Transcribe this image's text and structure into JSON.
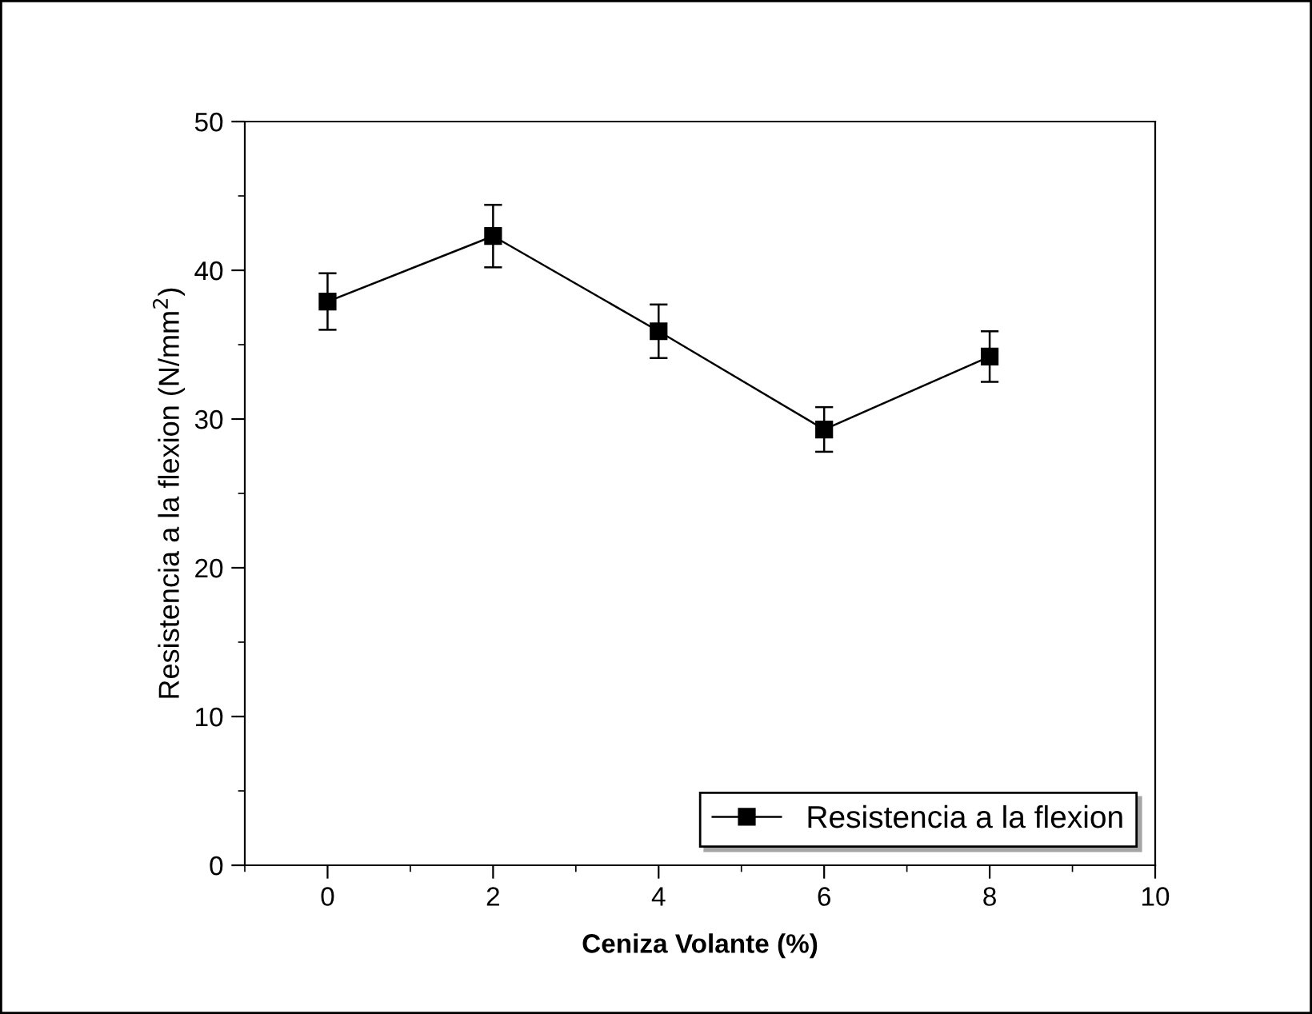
{
  "chart_data": {
    "type": "line",
    "xlabel": "Ceniza Volante (%)",
    "ylabel": "Resistencia a la flexion (N/mm$^{2}$)",
    "x": [
      0,
      2,
      4,
      6,
      8
    ],
    "series": [
      {
        "name": "Resistencia a la flexion",
        "color": "#000000",
        "values": [
          37.9,
          42.3,
          35.9,
          29.3,
          34.2
        ],
        "errors": [
          1.9,
          2.1,
          1.8,
          1.5,
          1.7
        ]
      }
    ],
    "xlim": [
      -1,
      10
    ],
    "xticks": [
      0,
      2,
      4,
      6,
      8,
      10
    ],
    "ylim": [
      0,
      50
    ],
    "yticks": [
      0,
      10,
      20,
      30,
      40,
      50
    ],
    "marker": "square",
    "line_style": "solid",
    "grid": false,
    "legend": "bottom right"
  }
}
